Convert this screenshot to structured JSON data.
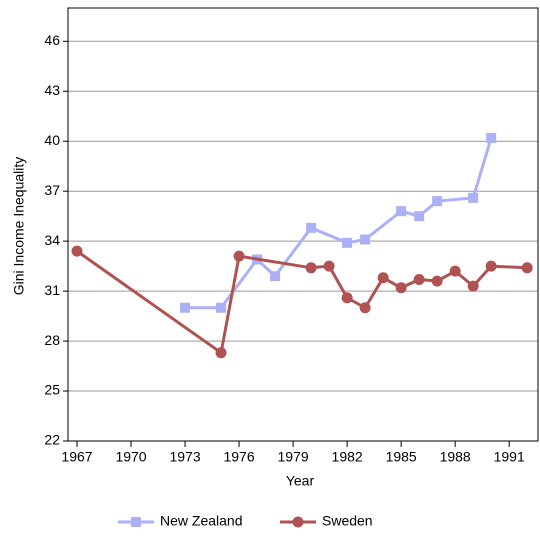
{
  "chart_data": {
    "type": "line",
    "x_label": "Year",
    "y_label": "Gini Income Inequality",
    "xlim": [
      1966.5,
      1992.6
    ],
    "xticks": [
      1967,
      1970,
      1973,
      1976,
      1979,
      1982,
      1985,
      1988,
      1991
    ],
    "ylim": [
      22,
      48
    ],
    "yticks": [
      22,
      25,
      28,
      31,
      34,
      37,
      40,
      43,
      46
    ],
    "grid": true,
    "legend": "bottom",
    "series": [
      {
        "name": "New Zealand",
        "color": "#abb0f7",
        "marker": "square",
        "x": [
          1973,
          1975,
          1977,
          1978,
          1980,
          1982,
          1983,
          1985,
          1986,
          1987,
          1989,
          1990
        ],
        "values": [
          30.0,
          30.0,
          32.9,
          31.9,
          34.8,
          33.9,
          34.1,
          35.8,
          35.5,
          36.4,
          36.6,
          40.2
        ]
      },
      {
        "name": "Sweden",
        "color": "#b05252",
        "marker": "circle",
        "x": [
          1967,
          1975,
          1976,
          1980,
          1981,
          1982,
          1983,
          1984,
          1985,
          1986,
          1987,
          1988,
          1989,
          1990,
          1992
        ],
        "values": [
          33.4,
          27.3,
          33.1,
          32.4,
          32.5,
          30.6,
          30.0,
          31.8,
          31.2,
          31.7,
          31.6,
          32.2,
          31.3,
          32.5,
          32.4
        ]
      }
    ]
  }
}
